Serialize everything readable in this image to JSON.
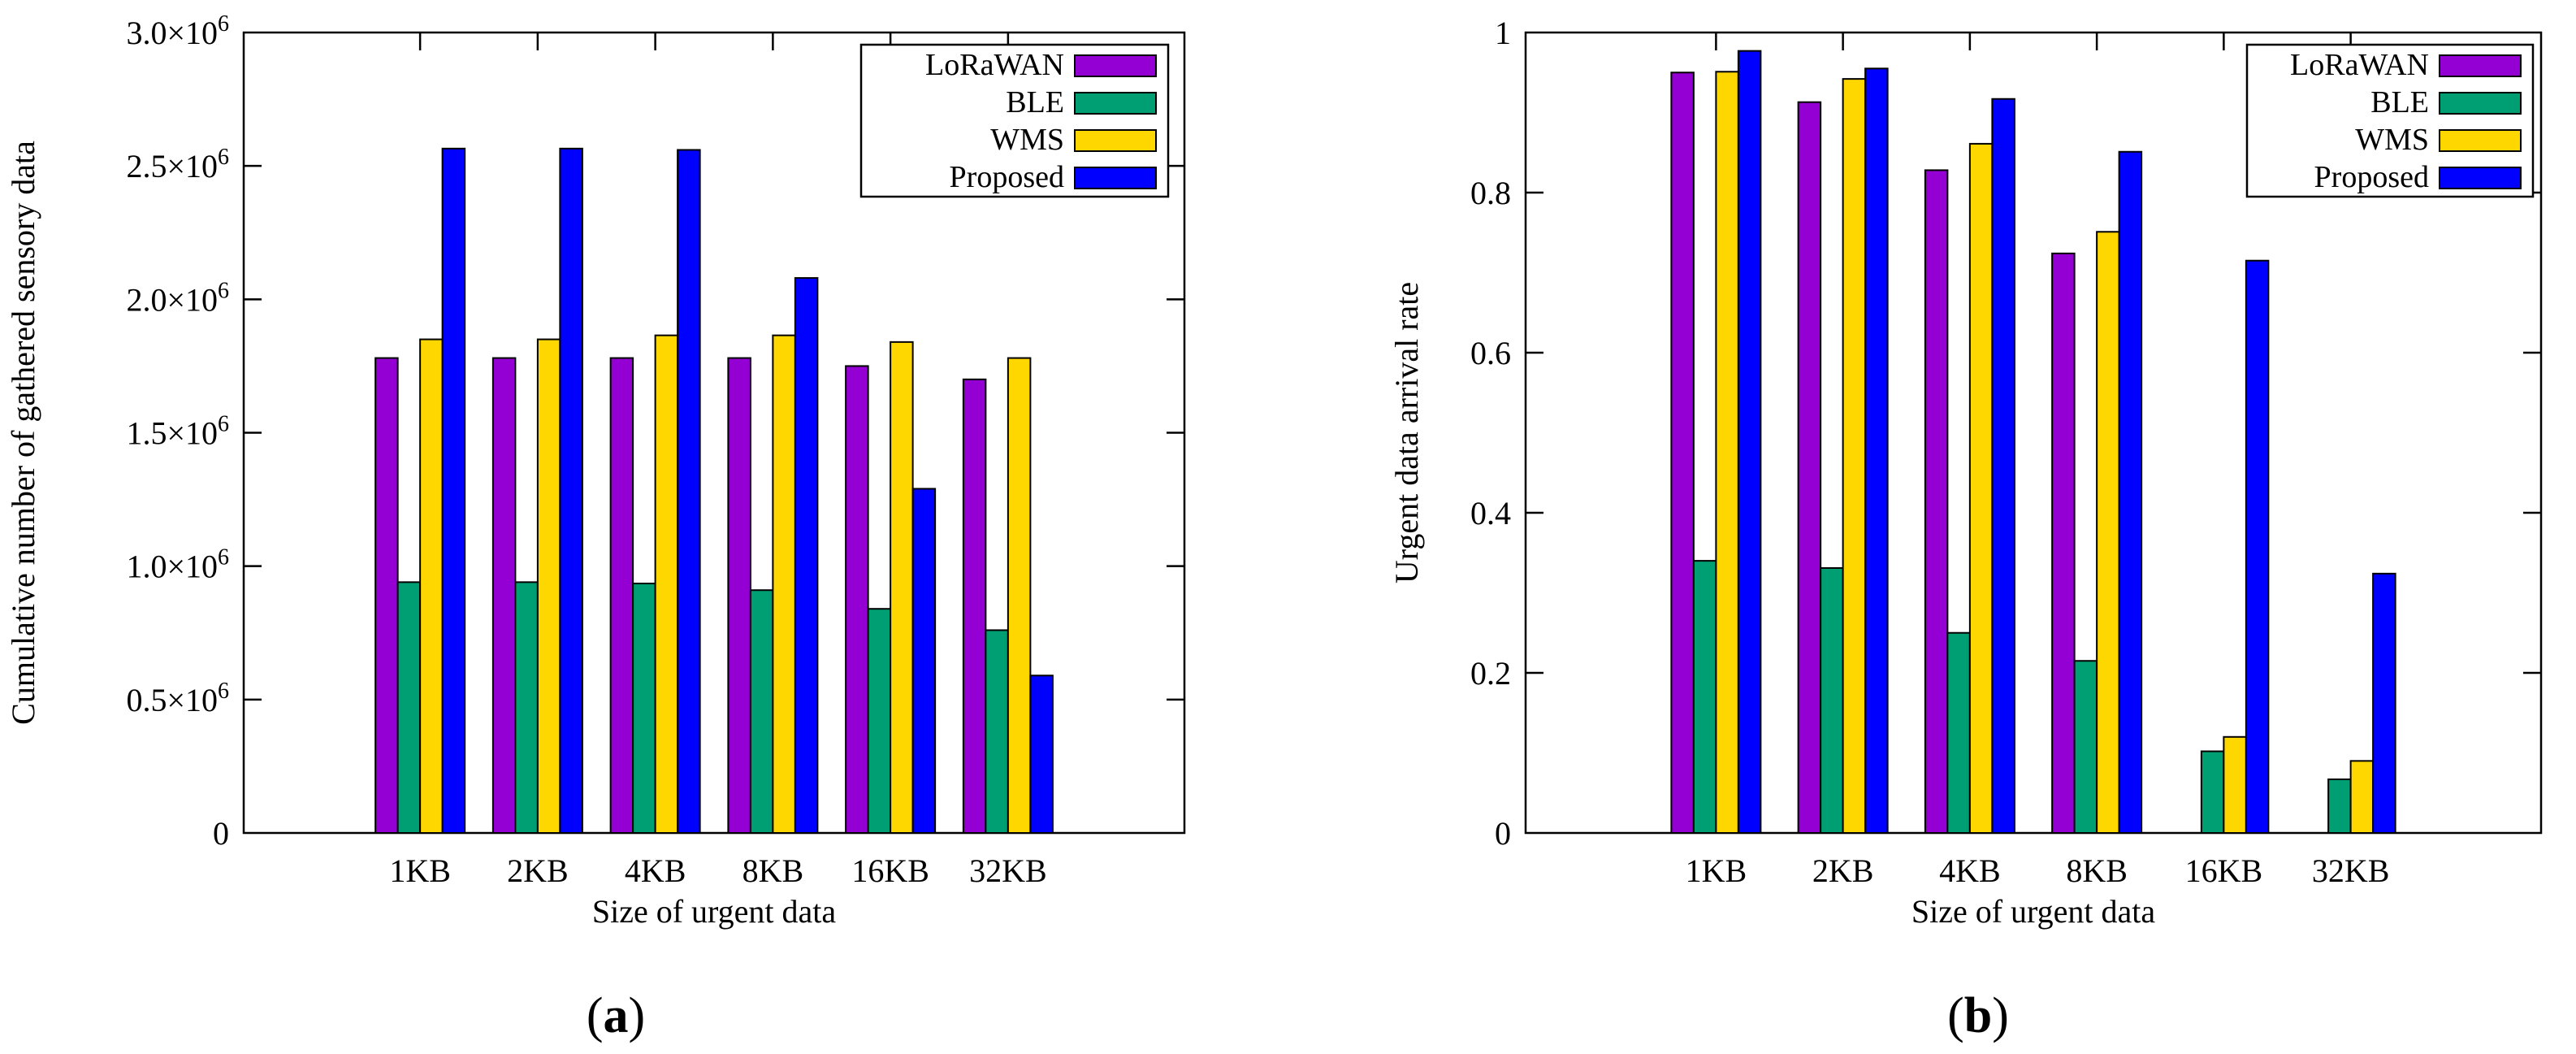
{
  "chart_data": [
    {
      "type": "bar",
      "panel_label": "a",
      "title": "",
      "xlabel": "Size of urgent data",
      "ylabel": "Cumulative number of gathered sensory data",
      "categories": [
        "1KB",
        "2KB",
        "4KB",
        "8KB",
        "16KB",
        "32KB"
      ],
      "ylim": [
        0,
        3000000
      ],
      "yticks": [
        {
          "value": 0,
          "mantissa": "0",
          "exponent": ""
        },
        {
          "value": 500000,
          "mantissa": "0.5×10",
          "exponent": "6"
        },
        {
          "value": 1000000,
          "mantissa": "1.0×10",
          "exponent": "6"
        },
        {
          "value": 1500000,
          "mantissa": "1.5×10",
          "exponent": "6"
        },
        {
          "value": 2000000,
          "mantissa": "2.0×10",
          "exponent": "6"
        },
        {
          "value": 2500000,
          "mantissa": "2.5×10",
          "exponent": "6"
        },
        {
          "value": 3000000,
          "mantissa": "3.0×10",
          "exponent": "6"
        }
      ],
      "series": [
        {
          "name": "LoRaWAN",
          "color": "#9400d3",
          "values": [
            1780000,
            1780000,
            1780000,
            1780000,
            1750000,
            1700000
          ]
        },
        {
          "name": "BLE",
          "color": "#009e73",
          "values": [
            940000,
            940000,
            935000,
            910000,
            840000,
            760000
          ]
        },
        {
          "name": "WMS",
          "color": "#ffd700",
          "values": [
            1850000,
            1850000,
            1865000,
            1865000,
            1840000,
            1780000
          ]
        },
        {
          "name": "Proposed",
          "color": "#0000ff",
          "values": [
            2565000,
            2565000,
            2560000,
            2080000,
            1290000,
            590000
          ]
        }
      ],
      "grid": false,
      "legend_position": "top-right"
    },
    {
      "type": "bar",
      "panel_label": "b",
      "title": "",
      "xlabel": "Size of urgent data",
      "ylabel": "Urgent data arrival rate",
      "categories": [
        "1KB",
        "2KB",
        "4KB",
        "8KB",
        "16KB",
        "32KB"
      ],
      "ylim": [
        0,
        1
      ],
      "yticks": [
        {
          "value": 0,
          "mantissa": "0",
          "exponent": ""
        },
        {
          "value": 0.2,
          "mantissa": "0.2",
          "exponent": ""
        },
        {
          "value": 0.4,
          "mantissa": "0.4",
          "exponent": ""
        },
        {
          "value": 0.6,
          "mantissa": "0.6",
          "exponent": ""
        },
        {
          "value": 0.8,
          "mantissa": "0.8",
          "exponent": ""
        },
        {
          "value": 1,
          "mantissa": "1",
          "exponent": ""
        }
      ],
      "series": [
        {
          "name": "LoRaWAN",
          "color": "#9400d3",
          "values": [
            0.95,
            0.913,
            0.828,
            0.724,
            0,
            0
          ]
        },
        {
          "name": "BLE",
          "color": "#009e73",
          "values": [
            0.34,
            0.331,
            0.25,
            0.215,
            0.102,
            0.067
          ]
        },
        {
          "name": "WMS",
          "color": "#ffd700",
          "values": [
            0.951,
            0.942,
            0.861,
            0.751,
            0.12,
            0.09
          ]
        },
        {
          "name": "Proposed",
          "color": "#0000ff",
          "values": [
            0.977,
            0.955,
            0.917,
            0.851,
            0.715,
            0.324
          ]
        }
      ],
      "grid": false,
      "legend_position": "top-right"
    }
  ]
}
